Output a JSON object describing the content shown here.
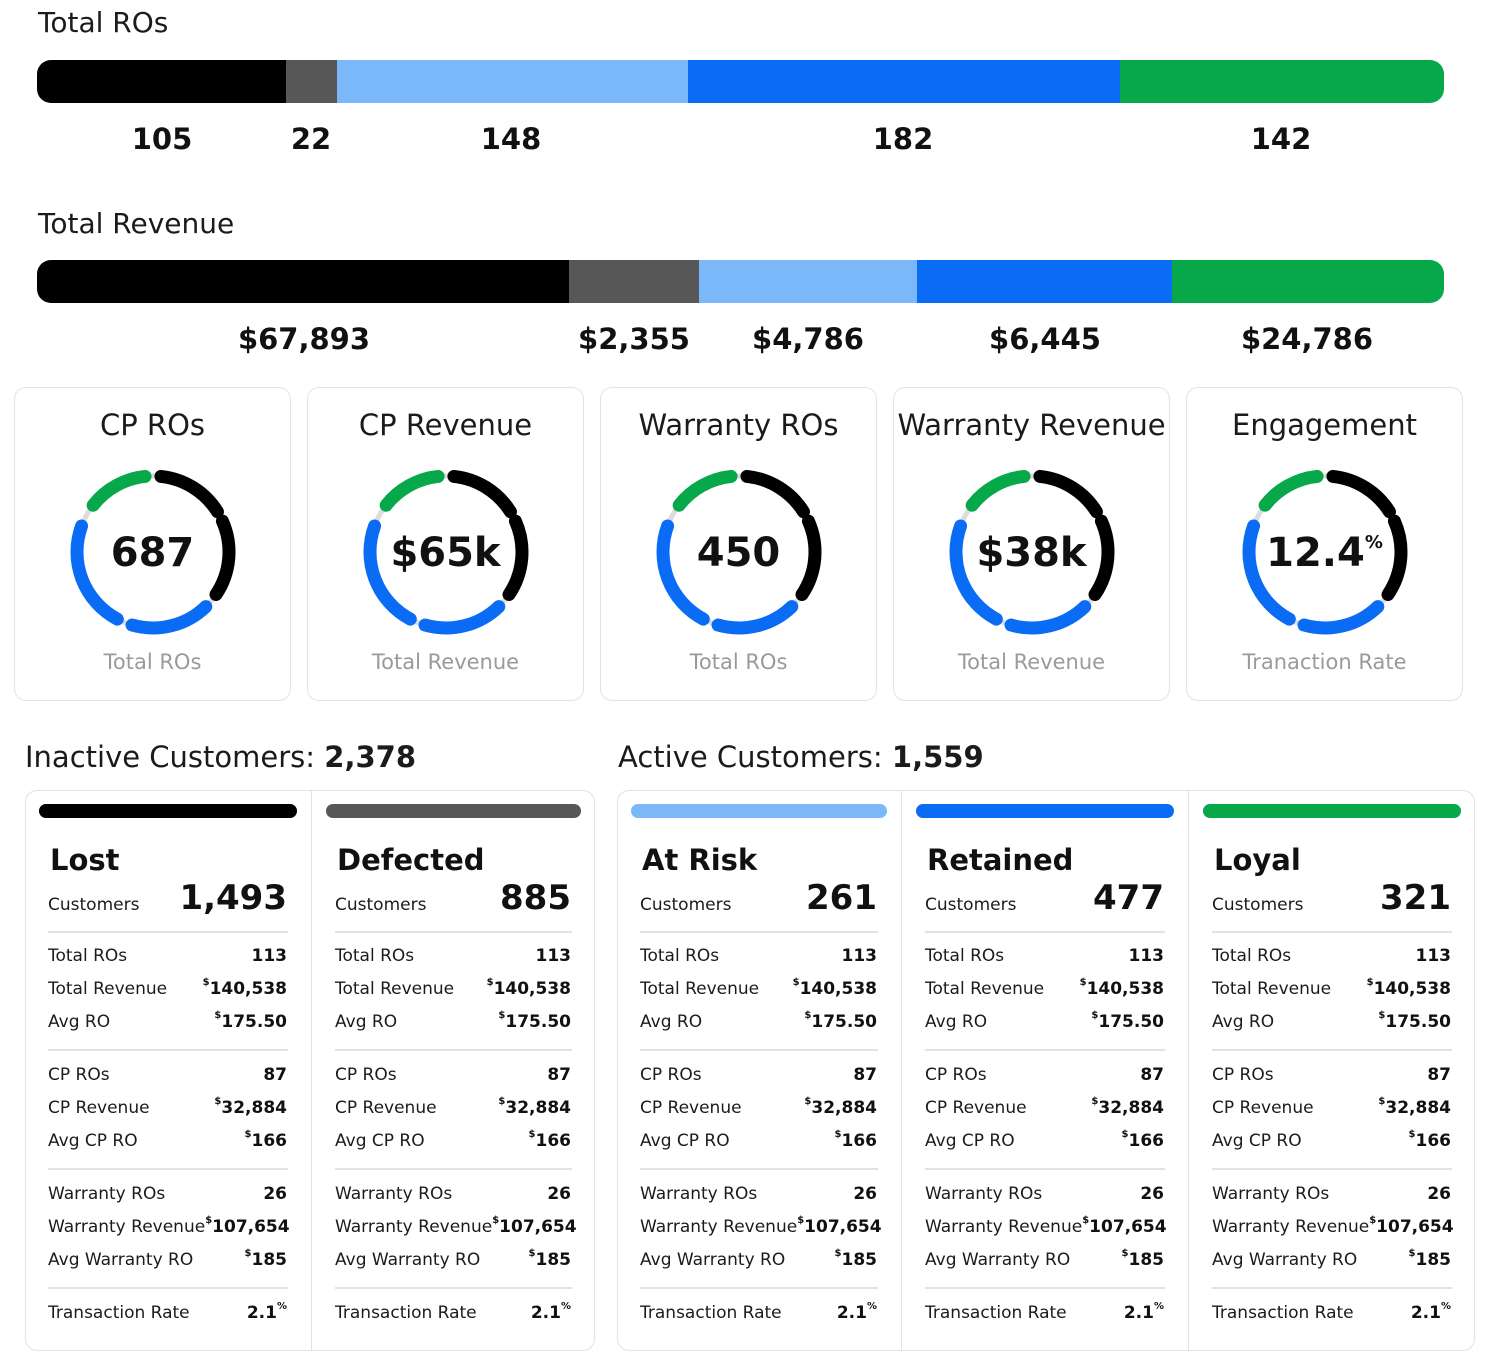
{
  "total_ros": {
    "title": "Total ROs",
    "segments": [
      {
        "value": "105",
        "color": "#000000"
      },
      {
        "value": "22",
        "color": "#575757"
      },
      {
        "value": "148",
        "color": "#7bb8fa"
      },
      {
        "value": "182",
        "color": "#0a6cf5"
      },
      {
        "value": "142",
        "color": "#07a84a"
      }
    ]
  },
  "total_revenue": {
    "title": "Total Revenue",
    "segments": [
      {
        "value": "$67,893",
        "color": "#000000"
      },
      {
        "value": "$2,355",
        "color": "#575757"
      },
      {
        "value": "$4,786",
        "color": "#7bb8fa"
      },
      {
        "value": "$6,445",
        "color": "#0a6cf5"
      },
      {
        "value": "$24,786",
        "color": "#07a84a"
      }
    ]
  },
  "gauges": [
    {
      "title": "CP ROs",
      "value": "687",
      "suffix": "",
      "subtitle": "Total ROs"
    },
    {
      "title": "CP Revenue",
      "value": "$65k",
      "suffix": "",
      "subtitle": "Total Revenue"
    },
    {
      "title": "Warranty ROs",
      "value": "450",
      "suffix": "",
      "subtitle": "Total ROs"
    },
    {
      "title": "Warranty Revenue",
      "value": "$38k",
      "suffix": "",
      "subtitle": "Total Revenue"
    },
    {
      "title": "Engagement",
      "value": "12.4",
      "suffix": "%",
      "subtitle": "Tranaction Rate"
    }
  ],
  "gauge_colors": {
    "green": "#07a84a",
    "black": "#000000",
    "blue": "#0a6cf5",
    "track": "#dcdcdc"
  },
  "inactive": {
    "label": "Inactive Customers:",
    "count": "2,378"
  },
  "active": {
    "label": "Active Customers:",
    "count": "1,559"
  },
  "segments": [
    {
      "name": "Lost",
      "color": "#000000",
      "customers_label": "Customers",
      "customers": "1,493"
    },
    {
      "name": "Defected",
      "color": "#575757",
      "customers_label": "Customers",
      "customers": "885"
    },
    {
      "name": "At Risk",
      "color": "#7bb8fa",
      "customers_label": "Customers",
      "customers": "261"
    },
    {
      "name": "Retained",
      "color": "#0a6cf5",
      "customers_label": "Customers",
      "customers": "477"
    },
    {
      "name": "Loyal",
      "color": "#07a84a",
      "customers_label": "Customers",
      "customers": "321"
    }
  ],
  "metric_rows": [
    {
      "label": "Total ROs",
      "prefix": "",
      "value": "113",
      "suffix": ""
    },
    {
      "label": "Total Revenue",
      "prefix": "$",
      "value": "140,538",
      "suffix": ""
    },
    {
      "label": "Avg RO",
      "prefix": "$",
      "value": "175.50",
      "suffix": ""
    },
    {
      "label": "CP ROs",
      "prefix": "",
      "value": "87",
      "suffix": ""
    },
    {
      "label": "CP Revenue",
      "prefix": "$",
      "value": "32,884",
      "suffix": ""
    },
    {
      "label": "Avg CP RO",
      "prefix": "$",
      "value": "166",
      "suffix": ""
    },
    {
      "label": "Warranty ROs",
      "prefix": "",
      "value": "26",
      "suffix": ""
    },
    {
      "label": "Warranty Revenue",
      "prefix": "$",
      "value": "107,654",
      "suffix": ""
    },
    {
      "label": "Avg Warranty RO",
      "prefix": "$",
      "value": "185",
      "suffix": ""
    },
    {
      "label": "Transaction Rate",
      "prefix": "",
      "value": "2.1",
      "suffix": "%"
    }
  ]
}
